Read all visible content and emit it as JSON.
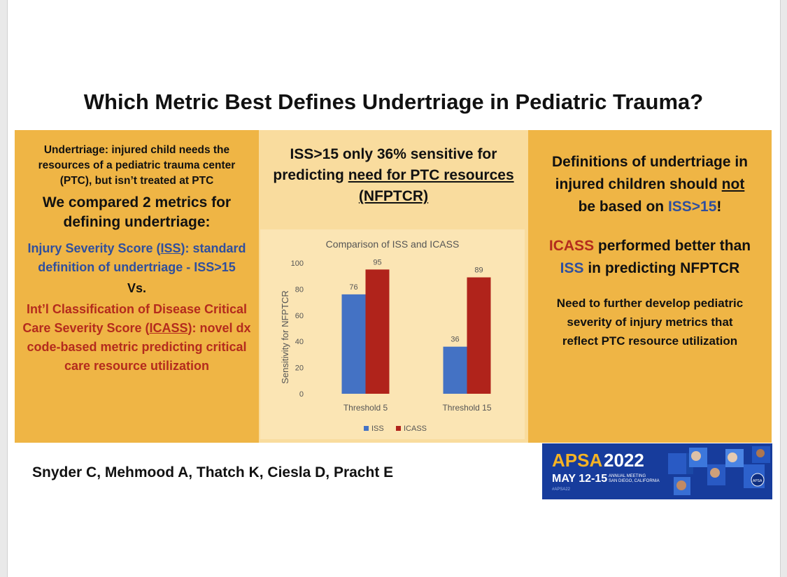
{
  "title": "Which Metric Best Defines Undertriage in Pediatric Trauma?",
  "left_panel": {
    "definition": "Undertriage: injured child needs the resources of a pediatric trauma center (PTC), but isn’t treated at PTC",
    "compared": "We compared 2 metrics for defining undertriage:",
    "iss_pre": "Injury Severity Score (",
    "iss_abbr": "ISS",
    "iss_post": "): standard definition of undertriage - ISS>15",
    "vs": "Vs.",
    "icass_pre": "Int’l Classification of Disease Critical Care Severity Score (",
    "icass_abbr": "ICASS",
    "icass_post": "): novel dx code-based metric predicting critical care resource utilization"
  },
  "middle_panel": {
    "headline_pre": "ISS>15 only 36% sensitive for predicting ",
    "headline_u": "need for PTC resources (NFPTCR)"
  },
  "right_panel": {
    "c1_a": "Definitions of undertriage in injured children should ",
    "c1_not": "not",
    "c1_b": " be based on ",
    "c1_iss": "ISS>15",
    "c1_end": "!",
    "c2_icass": "ICASS",
    "c2_a": " performed better than ",
    "c2_iss": "ISS",
    "c2_b": " in predicting NFPTCR",
    "c3": "Need to further develop pediatric severity of injury metrics that reflect PTC resource utilization"
  },
  "authors": "Snyder C, Mehmood A, Thatch K, Ciesla D, Pracht E",
  "logo": {
    "brand": "APSA",
    "year": "2022",
    "dates": "MAY 12-15",
    "meeting_line1": "ANNUAL MEETING",
    "meeting_line2": "SAN DIEGO, CALIFORNIA",
    "hashtag": "#APSA22",
    "badge": "APSA",
    "accent": "#f5b324"
  },
  "colors": {
    "iss": "#4472c4",
    "icass": "#b0231b",
    "accent_blue": "#2f4f9e",
    "accent_red": "#b42b1d",
    "panel_gold": "#efb545",
    "panel_light": "#f9dc9e"
  },
  "chart_data": {
    "type": "bar",
    "title": "Comparison of ISS and ICASS",
    "ylabel": "Sensitivity for NFPTCR",
    "xlabel": "",
    "categories": [
      "Threshold 5",
      "Threshold 15"
    ],
    "series": [
      {
        "name": "ISS",
        "values": [
          76,
          36
        ],
        "color": "#4472c4"
      },
      {
        "name": "ICASS",
        "values": [
          95,
          89
        ],
        "color": "#b0231b"
      }
    ],
    "ylim": [
      0,
      100
    ],
    "yticks": [
      0,
      20,
      40,
      60,
      80,
      100
    ],
    "grid": false,
    "legend": "bottom"
  }
}
